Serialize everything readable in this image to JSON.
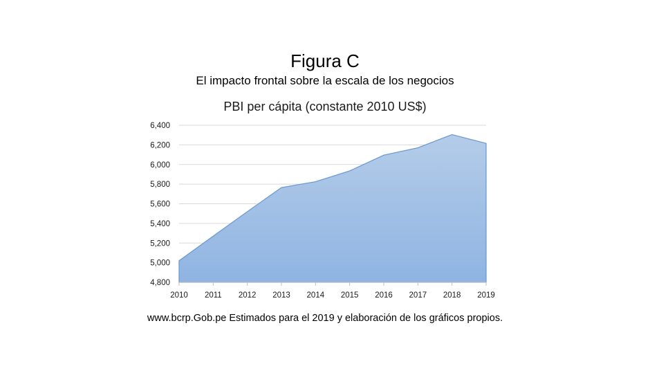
{
  "figure": {
    "title": "Figura C",
    "subtitle": "El impacto frontal sobre la escala de los negocios",
    "source": "www.bcrp.Gob.pe Estimados para el 2019 y elaboración de los gráficos propios."
  },
  "chart_data": {
    "type": "area",
    "title": "PBI per cápita (constante  2010 US$)",
    "xlabel": "",
    "ylabel": "",
    "categories": [
      "2010",
      "2011",
      "2012",
      "2013",
      "2014",
      "2015",
      "2016",
      "2017",
      "2018",
      "2019"
    ],
    "series": [
      {
        "values": [
          5020,
          5270,
          5520,
          5765,
          5825,
          5935,
          6095,
          6170,
          6305,
          6215
        ]
      }
    ],
    "ylim": [
      4800,
      6400
    ],
    "yticks": [
      4800,
      5000,
      5200,
      5400,
      5600,
      5800,
      6000,
      6200,
      6400
    ],
    "ytick_labels": [
      "4,800",
      "5,000",
      "5,200",
      "5,400",
      "5,600",
      "5,800",
      "6,000",
      "6,200",
      "6,400"
    ],
    "grid": true,
    "legend": "none",
    "colors": {
      "fill_top": "#b4cce9",
      "fill_bottom": "#8fb4e2",
      "stroke": "#6f9bd1",
      "grid": "#d9d9d9",
      "axis": "#bfbfbf"
    }
  }
}
